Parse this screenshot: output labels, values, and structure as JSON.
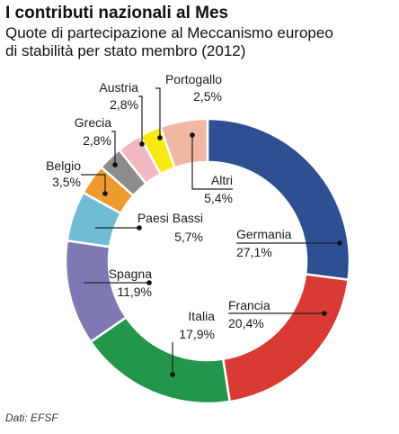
{
  "chart_data": {
    "type": "pie",
    "donut": true,
    "title": "I contributi nazionali al Mes",
    "subtitle_lines": [
      "Quote di partecipazione al Meccanismo europeo",
      "di stabilità per stato membro (2012)"
    ],
    "source": "Dati: EFSF",
    "unit": "%",
    "slices": [
      {
        "name": "Germania",
        "value": 27.1,
        "value_label": "27,1%",
        "color": "#2f4f93"
      },
      {
        "name": "Francia",
        "value": 20.4,
        "value_label": "20,4%",
        "color": "#d93a33"
      },
      {
        "name": "Italia",
        "value": 17.9,
        "value_label": "17,9%",
        "color": "#22964a"
      },
      {
        "name": "Spagna",
        "value": 11.9,
        "value_label": "11,9%",
        "color": "#7f79b3"
      },
      {
        "name": "Paesi Bassi",
        "value": 5.7,
        "value_label": "5,7%",
        "color": "#70bcd7"
      },
      {
        "name": "Belgio",
        "value": 3.5,
        "value_label": "3,5%",
        "color": "#ef9a2e"
      },
      {
        "name": "Grecia",
        "value": 2.8,
        "value_label": "2,8%",
        "color": "#8c8c8c"
      },
      {
        "name": "Austria",
        "value": 2.8,
        "value_label": "2,8%",
        "color": "#f2b8c2"
      },
      {
        "name": "Portogallo",
        "value": 2.5,
        "value_label": "2,5%",
        "color": "#f6ea11"
      },
      {
        "name": "Altri",
        "value": 5.4,
        "value_label": "5,4%",
        "color": "#f1b7a1"
      }
    ]
  }
}
